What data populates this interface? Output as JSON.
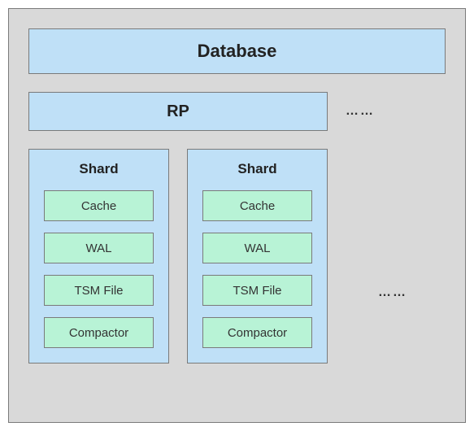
{
  "diagram": {
    "type": "nested-box-diagram",
    "outer_background": "#d9d9d9",
    "outer_border": "#7a7a7a",
    "box_fill_blue": "#bfe0f7",
    "box_fill_green": "#b8f3d6",
    "box_border": "#7a7a7a",
    "title_fontsize_pt": 22,
    "subtitle_fontsize_pt": 20,
    "label_fontsize_pt": 15,
    "ellipsis": "……"
  },
  "database": {
    "label": "Database"
  },
  "rp": {
    "label": "RP"
  },
  "shards": [
    {
      "title": "Shard",
      "items": [
        {
          "label": "Cache"
        },
        {
          "label": "WAL"
        },
        {
          "label": "TSM File"
        },
        {
          "label": "Compactor"
        }
      ]
    },
    {
      "title": "Shard",
      "items": [
        {
          "label": "Cache"
        },
        {
          "label": "WAL"
        },
        {
          "label": "TSM File"
        },
        {
          "label": "Compactor"
        }
      ]
    }
  ]
}
